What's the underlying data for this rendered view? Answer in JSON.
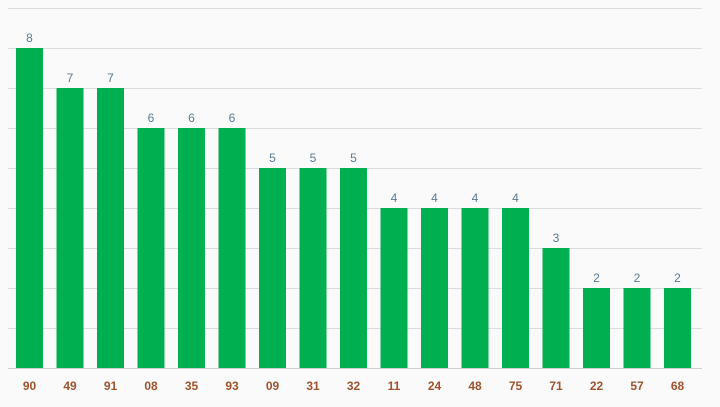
{
  "colors": {
    "bar": "#00b050",
    "value_label": "#5b7a95",
    "category_label": "#a0522d",
    "grid": "#dcdcdc",
    "background": "#fafafa"
  },
  "chart_data": {
    "type": "bar",
    "title": "",
    "xlabel": "",
    "ylabel": "",
    "categories": [
      "90",
      "49",
      "91",
      "08",
      "35",
      "93",
      "09",
      "31",
      "32",
      "11",
      "24",
      "48",
      "75",
      "71",
      "22",
      "57",
      "68"
    ],
    "values": [
      8,
      7,
      7,
      6,
      6,
      6,
      5,
      5,
      5,
      4,
      4,
      4,
      4,
      3,
      2,
      2,
      2
    ],
    "ylim": [
      0,
      9
    ],
    "grid": true,
    "gridlines_at": [
      0,
      1,
      2,
      3,
      4,
      5,
      6,
      7,
      8,
      9
    ],
    "show_value_labels": true,
    "legend": "none"
  }
}
